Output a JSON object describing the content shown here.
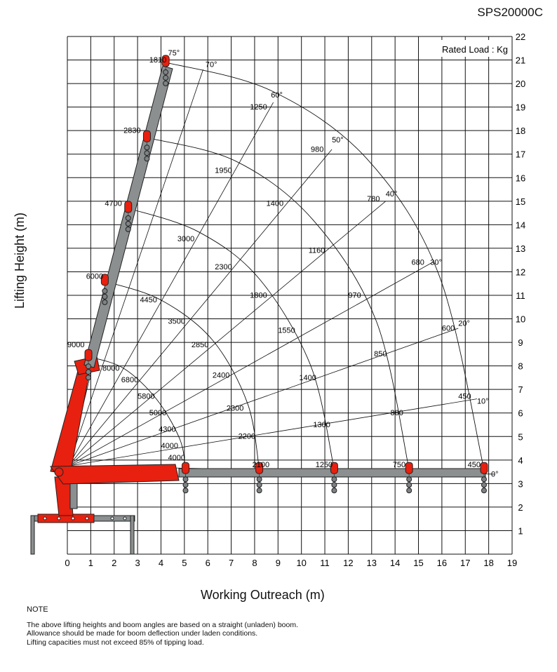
{
  "model": "SPS20000C",
  "notes": {
    "heading": "NOTE",
    "lines": [
      "The above lifting heights and boom angles are based on a straight (unladen) boom.",
      "Allowance should be made for boom deflection under laden conditions.",
      "Lifting capacities must not exceed 85% of tipping load."
    ]
  },
  "colors": {
    "boom_red": "#e8200f",
    "boom_gray": "#8b8f90",
    "grid": "#111111",
    "hook": "#7e8284"
  },
  "chart_data": {
    "type": "load-chart",
    "title": "SPS20000C",
    "legend_text": "Rated Load : Kg",
    "legend_position": "top-right",
    "xlabel": "Working Outreach (m)",
    "ylabel": "Lifting Height (m)",
    "xlim": [
      0,
      19
    ],
    "ylim": [
      0,
      22
    ],
    "grid": true,
    "x_ticks": [
      "0",
      "1",
      "2",
      "3",
      "4",
      "5",
      "6",
      "7",
      "8",
      "9",
      "10",
      "11",
      "12",
      "13",
      "14",
      "15",
      "16",
      "17",
      "18",
      "19"
    ],
    "y_ticks": [
      "1",
      "2",
      "3",
      "4",
      "5",
      "6",
      "7",
      "8",
      "9",
      "10",
      "11",
      "12",
      "13",
      "14",
      "15",
      "16",
      "17",
      "18",
      "19",
      "20",
      "21",
      "22"
    ],
    "pivot": [
      0.05,
      3.75
    ],
    "angle_lines": [
      {
        "label": "0°",
        "end": [
          18.25,
          3.4
        ]
      },
      {
        "label": "10°",
        "end": [
          17.5,
          6.6
        ]
      },
      {
        "label": "20°",
        "end": [
          16.7,
          9.6
        ]
      },
      {
        "label": "30°",
        "end": [
          15.6,
          12.4
        ]
      },
      {
        "label": "40°",
        "end": [
          13.6,
          15.0
        ]
      },
      {
        "label": "50°",
        "end": [
          11.3,
          17.2
        ]
      },
      {
        "label": "60°",
        "end": [
          8.8,
          19.2
        ]
      },
      {
        "label": "70°",
        "end": [
          5.8,
          20.6
        ]
      },
      {
        "label": "75°",
        "end": [
          4.2,
          20.9
        ]
      }
    ],
    "arcs": [
      {
        "points": [
          [
            0.9,
            8.4
          ],
          [
            2.4,
            7.9
          ],
          [
            3.8,
            6.6
          ],
          [
            4.8,
            4.9
          ],
          [
            5.05,
            3.6
          ]
        ]
      },
      {
        "points": [
          [
            1.6,
            11.6
          ],
          [
            4.0,
            10.8
          ],
          [
            6.2,
            9.1
          ],
          [
            7.7,
            6.4
          ],
          [
            8.2,
            3.6
          ]
        ]
      },
      {
        "points": [
          [
            2.6,
            14.7
          ],
          [
            5.6,
            13.7
          ],
          [
            8.2,
            11.7
          ],
          [
            10.4,
            8.0
          ],
          [
            11.4,
            3.6
          ]
        ]
      },
      {
        "points": [
          [
            3.4,
            17.7
          ],
          [
            7.2,
            16.7
          ],
          [
            10.5,
            14.2
          ],
          [
            13.2,
            9.9
          ],
          [
            14.6,
            3.6
          ]
        ]
      },
      {
        "points": [
          [
            4.2,
            20.9
          ],
          [
            8.7,
            19.7
          ],
          [
            12.8,
            16.8
          ],
          [
            15.9,
            11.8
          ],
          [
            17.8,
            3.6
          ]
        ]
      }
    ],
    "load_labels": [
      {
        "text": "1810",
        "x": 3.5,
        "y": 20.9
      },
      {
        "text": "75°",
        "x": 4.3,
        "y": 21.2
      },
      {
        "text": "70°",
        "x": 5.9,
        "y": 20.7
      },
      {
        "text": "2830",
        "x": 2.4,
        "y": 17.9
      },
      {
        "text": "4700",
        "x": 1.6,
        "y": 14.8
      },
      {
        "text": "6000",
        "x": 0.8,
        "y": 11.7
      },
      {
        "text": "9000",
        "x": 0.0,
        "y": 8.8
      },
      {
        "text": "8000",
        "x": 1.5,
        "y": 7.8
      },
      {
        "text": "1250",
        "x": 7.8,
        "y": 18.9
      },
      {
        "text": "60°",
        "x": 8.7,
        "y": 19.4
      },
      {
        "text": "980",
        "x": 10.4,
        "y": 17.1
      },
      {
        "text": "50°",
        "x": 11.3,
        "y": 17.5
      },
      {
        "text": "1950",
        "x": 6.3,
        "y": 16.2
      },
      {
        "text": "1400",
        "x": 8.5,
        "y": 14.8
      },
      {
        "text": "780",
        "x": 12.8,
        "y": 15.0
      },
      {
        "text": "40°",
        "x": 13.6,
        "y": 15.2
      },
      {
        "text": "3000",
        "x": 4.7,
        "y": 13.3
      },
      {
        "text": "1160",
        "x": 10.3,
        "y": 12.8
      },
      {
        "text": "680",
        "x": 14.7,
        "y": 12.3
      },
      {
        "text": "30°",
        "x": 15.5,
        "y": 12.3
      },
      {
        "text": "2300",
        "x": 6.3,
        "y": 12.1
      },
      {
        "text": "970",
        "x": 12.0,
        "y": 10.9
      },
      {
        "text": "1800",
        "x": 7.8,
        "y": 10.9
      },
      {
        "text": "4450",
        "x": 3.1,
        "y": 10.7
      },
      {
        "text": "3500",
        "x": 4.3,
        "y": 9.8
      },
      {
        "text": "600",
        "x": 16.0,
        "y": 9.5
      },
      {
        "text": "20°",
        "x": 16.7,
        "y": 9.7
      },
      {
        "text": "1550",
        "x": 9.0,
        "y": 9.4
      },
      {
        "text": "2850",
        "x": 5.3,
        "y": 8.8
      },
      {
        "text": "850",
        "x": 13.1,
        "y": 8.4
      },
      {
        "text": "2400",
        "x": 6.2,
        "y": 7.5
      },
      {
        "text": "1400",
        "x": 9.9,
        "y": 7.4
      },
      {
        "text": "6800",
        "x": 2.3,
        "y": 7.3
      },
      {
        "text": "5800",
        "x": 3.0,
        "y": 6.6
      },
      {
        "text": "5000",
        "x": 3.5,
        "y": 5.9
      },
      {
        "text": "2300",
        "x": 6.8,
        "y": 6.1
      },
      {
        "text": "800",
        "x": 13.8,
        "y": 5.9
      },
      {
        "text": "450",
        "x": 16.7,
        "y": 6.6
      },
      {
        "text": "10°",
        "x": 17.5,
        "y": 6.4
      },
      {
        "text": "4300",
        "x": 3.9,
        "y": 5.2
      },
      {
        "text": "1300",
        "x": 10.5,
        "y": 5.4
      },
      {
        "text": "2200",
        "x": 7.3,
        "y": 4.9
      },
      {
        "text": "4000",
        "x": 4.0,
        "y": 4.5
      },
      {
        "text": "4000",
        "x": 4.3,
        "y": 4.0
      },
      {
        "text": "2100",
        "x": 7.9,
        "y": 3.7
      },
      {
        "text": "1250",
        "x": 10.6,
        "y": 3.7
      },
      {
        "text": "750",
        "x": 13.9,
        "y": 3.7
      },
      {
        "text": "450",
        "x": 17.1,
        "y": 3.7
      },
      {
        "text": "0°",
        "x": 18.1,
        "y": 3.3
      }
    ]
  }
}
